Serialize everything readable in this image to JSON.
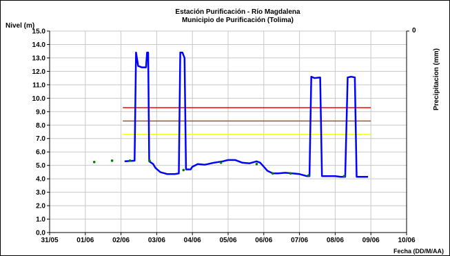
{
  "chart_data": {
    "type": "line",
    "title": "Estación Purificación - Río Magdalena",
    "subtitle": "Municipio de Purificación (Tolima)",
    "ylabel": "Nivel (m)",
    "y2label": "Precipitacion (mm)",
    "xlabel": "Fecha (DD/M/AA)",
    "ylim": [
      0,
      15
    ],
    "yticks": [
      "0.0",
      "1.0",
      "2.0",
      "3.0",
      "4.0",
      "5.0",
      "6.0",
      "7.0",
      "8.0",
      "9.0",
      "10.0",
      "11.0",
      "12.0",
      "13.0",
      "14.0",
      "15.0"
    ],
    "y2_tick_top": "0",
    "xlim": [
      0,
      10
    ],
    "xticks": [
      "31/05",
      "01/06",
      "02/06",
      "03/06",
      "04/06",
      "05/06",
      "06/06",
      "07/06",
      "08/06",
      "09/06",
      "10/06"
    ],
    "grid": true,
    "thresholds": [
      {
        "value": 9.3,
        "color": "#ff0000",
        "x_start": 2.05,
        "x_end": 9.0
      },
      {
        "value": 8.3,
        "color": "#a0522d",
        "x_start": 2.05,
        "x_end": 9.0
      },
      {
        "value": 7.3,
        "color": "#ffff00",
        "x_start": 2.05,
        "x_end": 9.0
      }
    ],
    "series": [
      {
        "style": "line",
        "color": "#0000ff",
        "points": [
          [
            2.1,
            5.3
          ],
          [
            2.38,
            5.35
          ],
          [
            2.42,
            13.4
          ],
          [
            2.48,
            12.4
          ],
          [
            2.58,
            12.3
          ],
          [
            2.7,
            12.3
          ],
          [
            2.73,
            13.4
          ],
          [
            2.76,
            13.4
          ],
          [
            2.79,
            5.3
          ],
          [
            2.9,
            5.1
          ],
          [
            2.97,
            4.8
          ],
          [
            3.1,
            4.5
          ],
          [
            3.3,
            4.35
          ],
          [
            3.5,
            4.35
          ],
          [
            3.62,
            4.4
          ],
          [
            3.66,
            13.4
          ],
          [
            3.72,
            13.4
          ],
          [
            3.78,
            13.0
          ],
          [
            3.82,
            4.7
          ],
          [
            3.95,
            4.7
          ],
          [
            4.0,
            4.9
          ],
          [
            4.15,
            5.1
          ],
          [
            4.35,
            5.05
          ],
          [
            4.6,
            5.2
          ],
          [
            4.85,
            5.3
          ],
          [
            5.0,
            5.4
          ],
          [
            5.2,
            5.4
          ],
          [
            5.4,
            5.2
          ],
          [
            5.6,
            5.15
          ],
          [
            5.8,
            5.3
          ],
          [
            5.9,
            5.2
          ],
          [
            6.0,
            4.9
          ],
          [
            6.1,
            4.6
          ],
          [
            6.25,
            4.4
          ],
          [
            6.4,
            4.4
          ],
          [
            6.6,
            4.45
          ],
          [
            6.8,
            4.4
          ],
          [
            7.0,
            4.35
          ],
          [
            7.2,
            4.2
          ],
          [
            7.28,
            4.2
          ],
          [
            7.33,
            11.6
          ],
          [
            7.42,
            11.5
          ],
          [
            7.58,
            11.55
          ],
          [
            7.63,
            4.2
          ],
          [
            7.8,
            4.2
          ],
          [
            8.0,
            4.2
          ],
          [
            8.15,
            4.15
          ],
          [
            8.28,
            4.15
          ],
          [
            8.35,
            11.55
          ],
          [
            8.45,
            11.6
          ],
          [
            8.55,
            11.55
          ],
          [
            8.6,
            4.15
          ],
          [
            8.75,
            4.15
          ],
          [
            8.92,
            4.15
          ]
        ]
      },
      {
        "style": "dots",
        "color": "#008000",
        "points": [
          [
            1.25,
            5.25
          ],
          [
            1.75,
            5.35
          ],
          [
            2.25,
            5.35
          ],
          [
            2.8,
            5.35
          ],
          [
            3.75,
            4.65
          ],
          [
            4.8,
            5.2
          ],
          [
            5.8,
            5.1
          ],
          [
            6.25,
            4.4
          ],
          [
            6.75,
            4.4
          ],
          [
            7.25,
            4.25
          ],
          [
            8.25,
            4.2
          ]
        ]
      }
    ]
  }
}
